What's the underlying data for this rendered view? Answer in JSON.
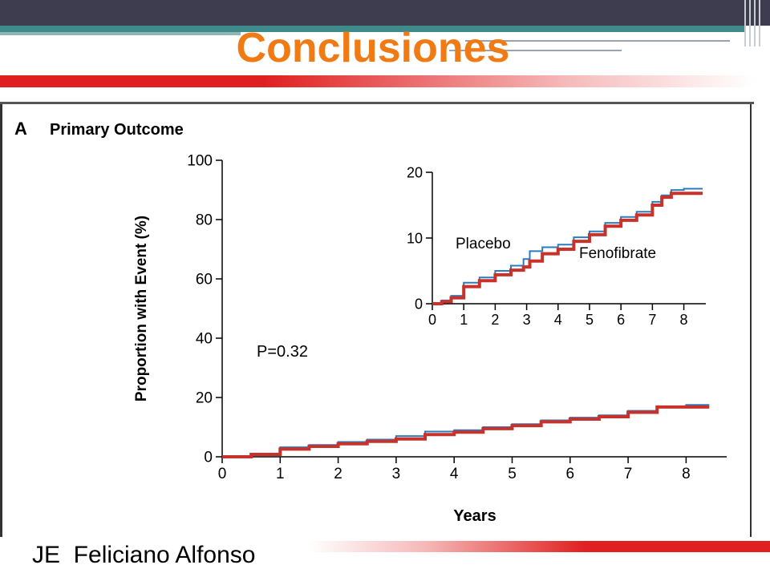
{
  "slide": {
    "title": "Conclusiones",
    "footer": "JE  Feliciano Alfonso"
  },
  "colors": {
    "title": "#f07b14",
    "header_bar": "#3d3d4f",
    "teal": "#3f8b8b",
    "accent_red": "#e02020",
    "placebo": "#2b7bbd",
    "fenofibrate": "#c8322a"
  },
  "chart_data": [
    {
      "type": "line",
      "panel_label": "A",
      "title": "Primary Outcome",
      "xlabel": "Years",
      "ylabel": "Proportion with Event (%)",
      "xlim": [
        0,
        8.7
      ],
      "ylim": [
        0,
        100
      ],
      "xticks": [
        0,
        1,
        2,
        3,
        4,
        5,
        6,
        7,
        8
      ],
      "yticks": [
        0,
        20,
        40,
        60,
        80,
        100
      ],
      "annotation": "P=0.32",
      "series": [
        {
          "name": "Placebo",
          "color": "#2b7bbd",
          "x": [
            0,
            0.5,
            1,
            1.5,
            2,
            2.5,
            3,
            3.5,
            4,
            4.5,
            5,
            5.5,
            6,
            6.5,
            7,
            7.5,
            8,
            8.4
          ],
          "y": [
            0,
            1.0,
            3.2,
            4.0,
            5.0,
            5.8,
            7.0,
            8.5,
            9.0,
            10.0,
            11.0,
            12.3,
            13.2,
            14.0,
            15.5,
            17.0,
            17.5,
            17.5
          ]
        },
        {
          "name": "Fenofibrate",
          "color": "#c8322a",
          "x": [
            0,
            0.5,
            1,
            1.5,
            2,
            2.5,
            3,
            3.5,
            4,
            4.5,
            5,
            5.5,
            6,
            6.5,
            7,
            7.5,
            8,
            8.4
          ],
          "y": [
            0,
            0.8,
            2.6,
            3.5,
            4.4,
            5.2,
            6.0,
            7.5,
            8.3,
            9.5,
            10.5,
            11.8,
            12.7,
            13.5,
            15.0,
            16.8,
            16.8,
            16.8
          ]
        }
      ]
    },
    {
      "type": "line",
      "role": "inset",
      "xlim": [
        0,
        8.7
      ],
      "ylim": [
        0,
        20
      ],
      "xticks": [
        0,
        1,
        2,
        3,
        4,
        5,
        6,
        7,
        8
      ],
      "yticks": [
        0,
        10,
        20
      ],
      "series": [
        {
          "name": "Placebo",
          "color": "#2b7bbd",
          "x": [
            0,
            0.3,
            0.6,
            1,
            1.5,
            2,
            2.5,
            2.9,
            3.1,
            3.5,
            4,
            4.5,
            5,
            5.5,
            6,
            6.5,
            7,
            7.3,
            7.6,
            8,
            8.6
          ],
          "y": [
            0,
            0.5,
            1.2,
            3.2,
            4.0,
            5.0,
            5.8,
            6.8,
            8.0,
            8.6,
            9.0,
            10.1,
            11.0,
            12.3,
            13.2,
            14.0,
            15.5,
            16.5,
            17.3,
            17.5,
            17.5
          ]
        },
        {
          "name": "Fenofibrate",
          "color": "#c8322a",
          "x": [
            0,
            0.3,
            0.6,
            1,
            1.5,
            2,
            2.5,
            2.9,
            3.1,
            3.5,
            4,
            4.5,
            5,
            5.5,
            6,
            6.5,
            7,
            7.3,
            7.6,
            8,
            8.6
          ],
          "y": [
            0,
            0.3,
            0.9,
            2.6,
            3.5,
            4.4,
            5.1,
            5.6,
            6.5,
            7.6,
            8.3,
            9.5,
            10.5,
            11.8,
            12.7,
            13.5,
            15.0,
            16.2,
            16.8,
            16.8,
            16.8
          ]
        }
      ],
      "labels": [
        "Placebo",
        "Fenofibrate"
      ]
    }
  ]
}
